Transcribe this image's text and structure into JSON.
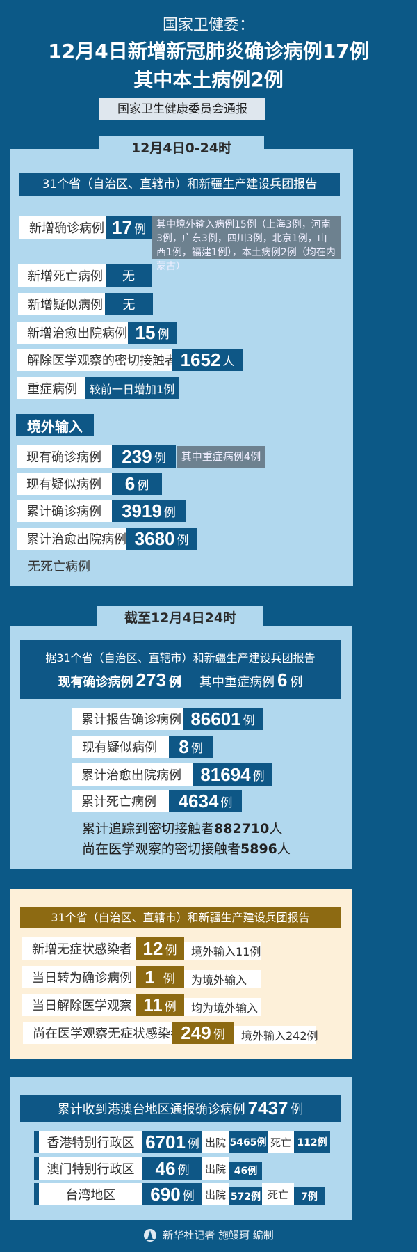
{
  "header": {
    "kicker": "国家卫健委：",
    "title_line1": "12月4日新增新冠肺炎确诊病例17例",
    "title_line2": "其中本土病例2例",
    "source": "国家卫生健康委员会通报"
  },
  "daily": {
    "tab": "12月4日0-24时",
    "report_bar": "31个省（自治区、直辖市）和新疆生产建设兵团报告",
    "rows": [
      {
        "label": "新增确诊病例",
        "value": "17",
        "unit": "例",
        "note": "其中境外输入病例15例（上海3例，河南3例，广东3例，四川3例，北京1例，山西1例，福建1例），本土病例2例（均在内蒙古）"
      },
      {
        "label": "新增死亡病例",
        "value": "无"
      },
      {
        "label": "新增疑似病例",
        "value": "无"
      },
      {
        "label": "新增治愈出院病例",
        "value": "15",
        "unit": "例"
      },
      {
        "label": "解除医学观察的密切接触者",
        "value": "1652",
        "unit": "人"
      },
      {
        "label": "重症病例",
        "value": "较前一日增加1例"
      }
    ],
    "imported": {
      "heading": "境外输入",
      "rows": [
        {
          "label": "现有确诊病例",
          "value": "239",
          "unit": "例",
          "note": "其中重症病例4例"
        },
        {
          "label": "现有疑似病例",
          "value": "6",
          "unit": "例"
        },
        {
          "label": "累计确诊病例",
          "value": "3919",
          "unit": "例"
        },
        {
          "label": "累计治愈出院病例",
          "value": "3680",
          "unit": "例"
        }
      ],
      "footer": "无死亡病例"
    }
  },
  "cumulative": {
    "tab": "截至12月4日24时",
    "report_line": "据31个省（自治区、直辖市）和新疆生产建设兵团报告",
    "current_label": "现有确诊病例",
    "current_value": "273",
    "current_unit": "例",
    "severe_label": "其中重症病例",
    "severe_value": "6",
    "severe_unit": "例",
    "rows": [
      {
        "label": "累计报告确诊病例",
        "value": "86601",
        "unit": "例"
      },
      {
        "label": "现有疑似病例",
        "value": "8",
        "unit": "例"
      },
      {
        "label": "累计治愈出院病例",
        "value": "81694",
        "unit": "例"
      },
      {
        "label": "累计死亡病例",
        "value": "4634",
        "unit": "例"
      }
    ],
    "traced_label": "累计追踪到密切接触者",
    "traced_value": "882710",
    "traced_unit": "人",
    "observing_label": "尚在医学观察的密切接触者",
    "observing_value": "5896",
    "observing_unit": "人"
  },
  "asymptomatic": {
    "report_bar": "31个省（自治区、直辖市）和新疆生产建设兵团报告",
    "rows": [
      {
        "label": "新增无症状感染者",
        "value": "12",
        "unit": "例",
        "note": "境外输入11例"
      },
      {
        "label": "当日转为确诊病例",
        "value": "1",
        "unit": "例",
        "note": "为境外输入"
      },
      {
        "label": "当日解除医学观察",
        "value": "11",
        "unit": "例",
        "note": "均为境外输入"
      },
      {
        "label": "尚在医学观察无症状感染者",
        "value": "249",
        "unit": "例",
        "note": "境外输入242例"
      }
    ]
  },
  "hmt": {
    "bar_label": "累计收到港澳台地区通报确诊病例",
    "bar_value": "7437",
    "bar_unit": "例",
    "discharged_label": "出院",
    "death_label": "死亡",
    "rows": [
      {
        "region": "香港特别行政区",
        "value": "6701",
        "unit": "例",
        "discharged": "5465例",
        "deaths": "112例"
      },
      {
        "region": "澳门特别行政区",
        "value": "46",
        "unit": "例",
        "discharged": "46例"
      },
      {
        "region": "台湾地区",
        "value": "690",
        "unit": "例",
        "discharged": "572例",
        "deaths": "7例"
      }
    ]
  },
  "footer": {
    "credit": "新华社记者 施鳗珂 编制",
    "logo_icon": "xinhua-logo-icon"
  },
  "colors": {
    "background": "#0c5987",
    "panel": "#b1d8ee",
    "dark": "#0e5786",
    "gold": "#8d6a12",
    "cream": "#fdf0d9",
    "note_gray": "#6d818f"
  }
}
